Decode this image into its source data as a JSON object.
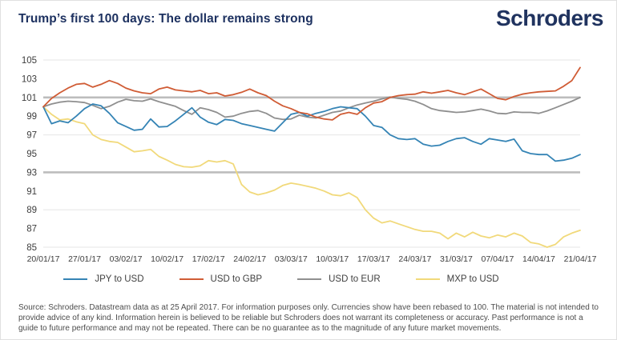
{
  "header": {
    "title": "Trump’s first 100 days: The dollar remains strong",
    "logo": "Schroders"
  },
  "colors": {
    "brand_navy": "#20335f",
    "grid_faint": "#e6e6e6",
    "grid_emphasis": "#bdbdbd",
    "axis_text": "#3d3d3d"
  },
  "chart_data": {
    "type": "line",
    "title": "Trump’s first 100 days: The dollar remains strong",
    "ylim": [
      85,
      105
    ],
    "y_ticks": [
      105,
      103,
      101,
      99,
      97,
      95,
      93,
      91,
      89,
      87,
      85
    ],
    "gridlines": {
      "values": [
        105,
        101,
        97,
        93,
        89,
        85
      ],
      "emphasized": [
        101,
        93
      ]
    },
    "x_tick_labels": [
      "20/01/17",
      "27/01/17",
      "03/02/17",
      "10/02/17",
      "17/02/17",
      "24/02/17",
      "03/03/17",
      "10/03/17",
      "17/03/17",
      "24/03/17",
      "31/03/17",
      "07/04/17",
      "14/04/17",
      "21/04/17"
    ],
    "x_tick_indices": [
      0,
      5,
      10,
      15,
      20,
      25,
      30,
      35,
      40,
      45,
      50,
      55,
      60,
      65
    ],
    "legend_position": "bottom",
    "grid": "horizontal-only",
    "note": "All series rebased to 100 at 20/01/17, business-daily points",
    "series": [
      {
        "name": "JPY to USD",
        "color": "#3584b5",
        "values": [
          100.0,
          98.2,
          98.5,
          98.3,
          99.0,
          99.8,
          100.3,
          100.1,
          99.3,
          98.3,
          97.9,
          97.5,
          97.6,
          98.7,
          97.85,
          97.9,
          98.5,
          99.2,
          99.9,
          98.9,
          98.35,
          98.1,
          98.65,
          98.55,
          98.2,
          98.0,
          97.8,
          97.6,
          97.4,
          98.3,
          99.2,
          99.4,
          99.0,
          99.3,
          99.5,
          99.8,
          100.0,
          99.9,
          99.8,
          99.0,
          98.0,
          97.8,
          97.0,
          96.6,
          96.5,
          96.6,
          96.0,
          95.8,
          95.9,
          96.3,
          96.6,
          96.7,
          96.3,
          96.0,
          96.6,
          96.45,
          96.3,
          96.55,
          95.3,
          95.0,
          94.9,
          94.9,
          94.2,
          94.3,
          94.5,
          94.9
        ]
      },
      {
        "name": "USD to GBP",
        "color": "#d05c35",
        "values": [
          100.0,
          100.9,
          101.5,
          102.0,
          102.4,
          102.5,
          102.1,
          102.4,
          102.8,
          102.5,
          102.0,
          101.7,
          101.5,
          101.4,
          101.9,
          102.1,
          101.8,
          101.7,
          101.6,
          101.75,
          101.4,
          101.5,
          101.15,
          101.3,
          101.55,
          101.9,
          101.5,
          101.2,
          100.6,
          100.1,
          99.8,
          99.4,
          99.25,
          98.9,
          98.7,
          98.6,
          99.2,
          99.4,
          99.2,
          99.9,
          100.4,
          100.55,
          101.0,
          101.2,
          101.3,
          101.35,
          101.6,
          101.45,
          101.6,
          101.75,
          101.5,
          101.3,
          101.6,
          101.9,
          101.4,
          100.9,
          100.75,
          101.1,
          101.35,
          101.5,
          101.6,
          101.65,
          101.7,
          102.2,
          102.8,
          104.2
        ]
      },
      {
        "name": "USD to EUR",
        "color": "#8f8f8f",
        "values": [
          100.0,
          100.3,
          100.5,
          100.6,
          100.55,
          100.45,
          100.15,
          99.8,
          100.05,
          100.5,
          100.8,
          100.65,
          100.6,
          100.85,
          100.55,
          100.3,
          100.05,
          99.6,
          99.2,
          99.9,
          99.7,
          99.4,
          98.9,
          99.0,
          99.3,
          99.5,
          99.6,
          99.3,
          98.8,
          98.65,
          98.7,
          99.1,
          98.9,
          98.8,
          99.1,
          99.4,
          99.55,
          99.9,
          100.2,
          100.4,
          100.6,
          100.85,
          101.05,
          100.9,
          100.8,
          100.6,
          100.25,
          99.8,
          99.6,
          99.5,
          99.4,
          99.45,
          99.6,
          99.75,
          99.56,
          99.3,
          99.26,
          99.45,
          99.4,
          99.4,
          99.3,
          99.56,
          99.9,
          100.25,
          100.6,
          101.0
        ]
      },
      {
        "name": "MXP to USD",
        "color": "#f1d97a",
        "values": [
          100.0,
          99.2,
          98.6,
          98.7,
          98.4,
          98.2,
          97.0,
          96.5,
          96.3,
          96.2,
          95.7,
          95.2,
          95.3,
          95.45,
          94.7,
          94.3,
          93.85,
          93.6,
          93.55,
          93.7,
          94.25,
          94.1,
          94.25,
          93.9,
          91.7,
          90.9,
          90.6,
          90.8,
          91.1,
          91.6,
          91.85,
          91.7,
          91.5,
          91.3,
          91.0,
          90.6,
          90.5,
          90.8,
          90.3,
          89.0,
          88.1,
          87.6,
          87.8,
          87.5,
          87.2,
          86.9,
          86.7,
          86.7,
          86.5,
          85.9,
          86.5,
          86.1,
          86.6,
          86.2,
          86.0,
          86.3,
          86.1,
          86.5,
          86.2,
          85.5,
          85.35,
          85.0,
          85.3,
          86.1,
          86.5,
          86.8
        ]
      }
    ]
  },
  "footer": {
    "source_text": "Source: Schroders. Datastream data as at 25 April 2017. For information purposes only. Currencies show have been rebased to 100. The material is not intended to provide advice of any kind. Information herein is believed to be reliable but Schroders does not warrant its completeness or accuracy. Past performance is not a guide to future performance and may not be repeated. There can be no guarantee as to the magnitude of any future market movements."
  }
}
